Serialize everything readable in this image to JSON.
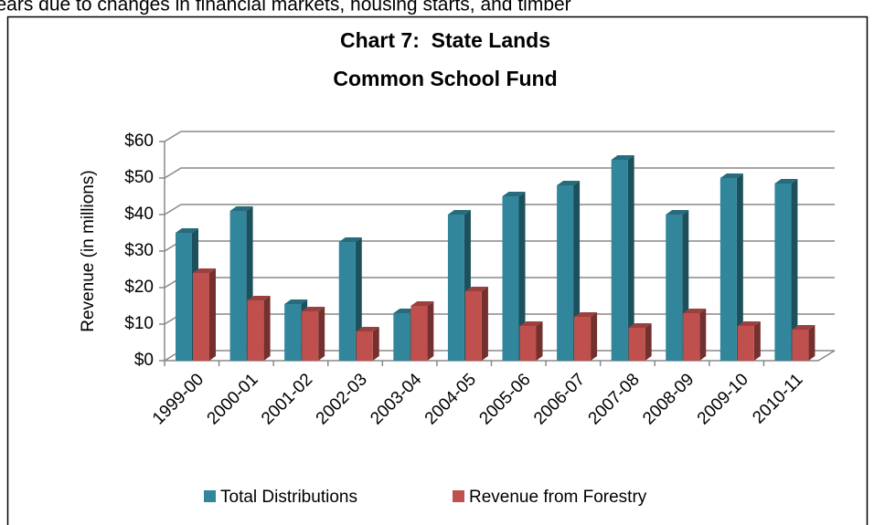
{
  "text_above": "years due to changes in financial markets, housing starts, and timber",
  "chart_data": {
    "type": "bar3d",
    "title": [
      "Chart 7:  State Lands",
      "Common School Fund"
    ],
    "y_label": "Revenue (in millions)",
    "categories": [
      "1999-00",
      "2000-01",
      "2001-02",
      "2002-03",
      "2003-04",
      "2004-05",
      "2005-06",
      "2006-07",
      "2007-08",
      "2008-09",
      "2009-10",
      "2010-11"
    ],
    "series": [
      {
        "name": "Total Distributions",
        "color": "#31869b",
        "values": [
          35,
          41,
          15.5,
          32.5,
          13,
          40,
          45,
          48,
          55,
          40,
          50,
          48.5
        ]
      },
      {
        "name": "Revenue from Forestry",
        "color": "#c0504d",
        "values": [
          24,
          16.5,
          13.5,
          8,
          15,
          19,
          9.5,
          12,
          9,
          13,
          9.5,
          8.5
        ]
      }
    ],
    "ylim": [
      0,
      60
    ],
    "yticks": [
      {
        "value": 0,
        "label": "$0"
      },
      {
        "value": 10,
        "label": "$10"
      },
      {
        "value": 20,
        "label": "$20"
      },
      {
        "value": 30,
        "label": "$30"
      },
      {
        "value": 40,
        "label": "$40"
      },
      {
        "value": 50,
        "label": "$50"
      },
      {
        "value": 60,
        "label": "$60"
      }
    ],
    "grid": true,
    "legend": "bottom"
  }
}
